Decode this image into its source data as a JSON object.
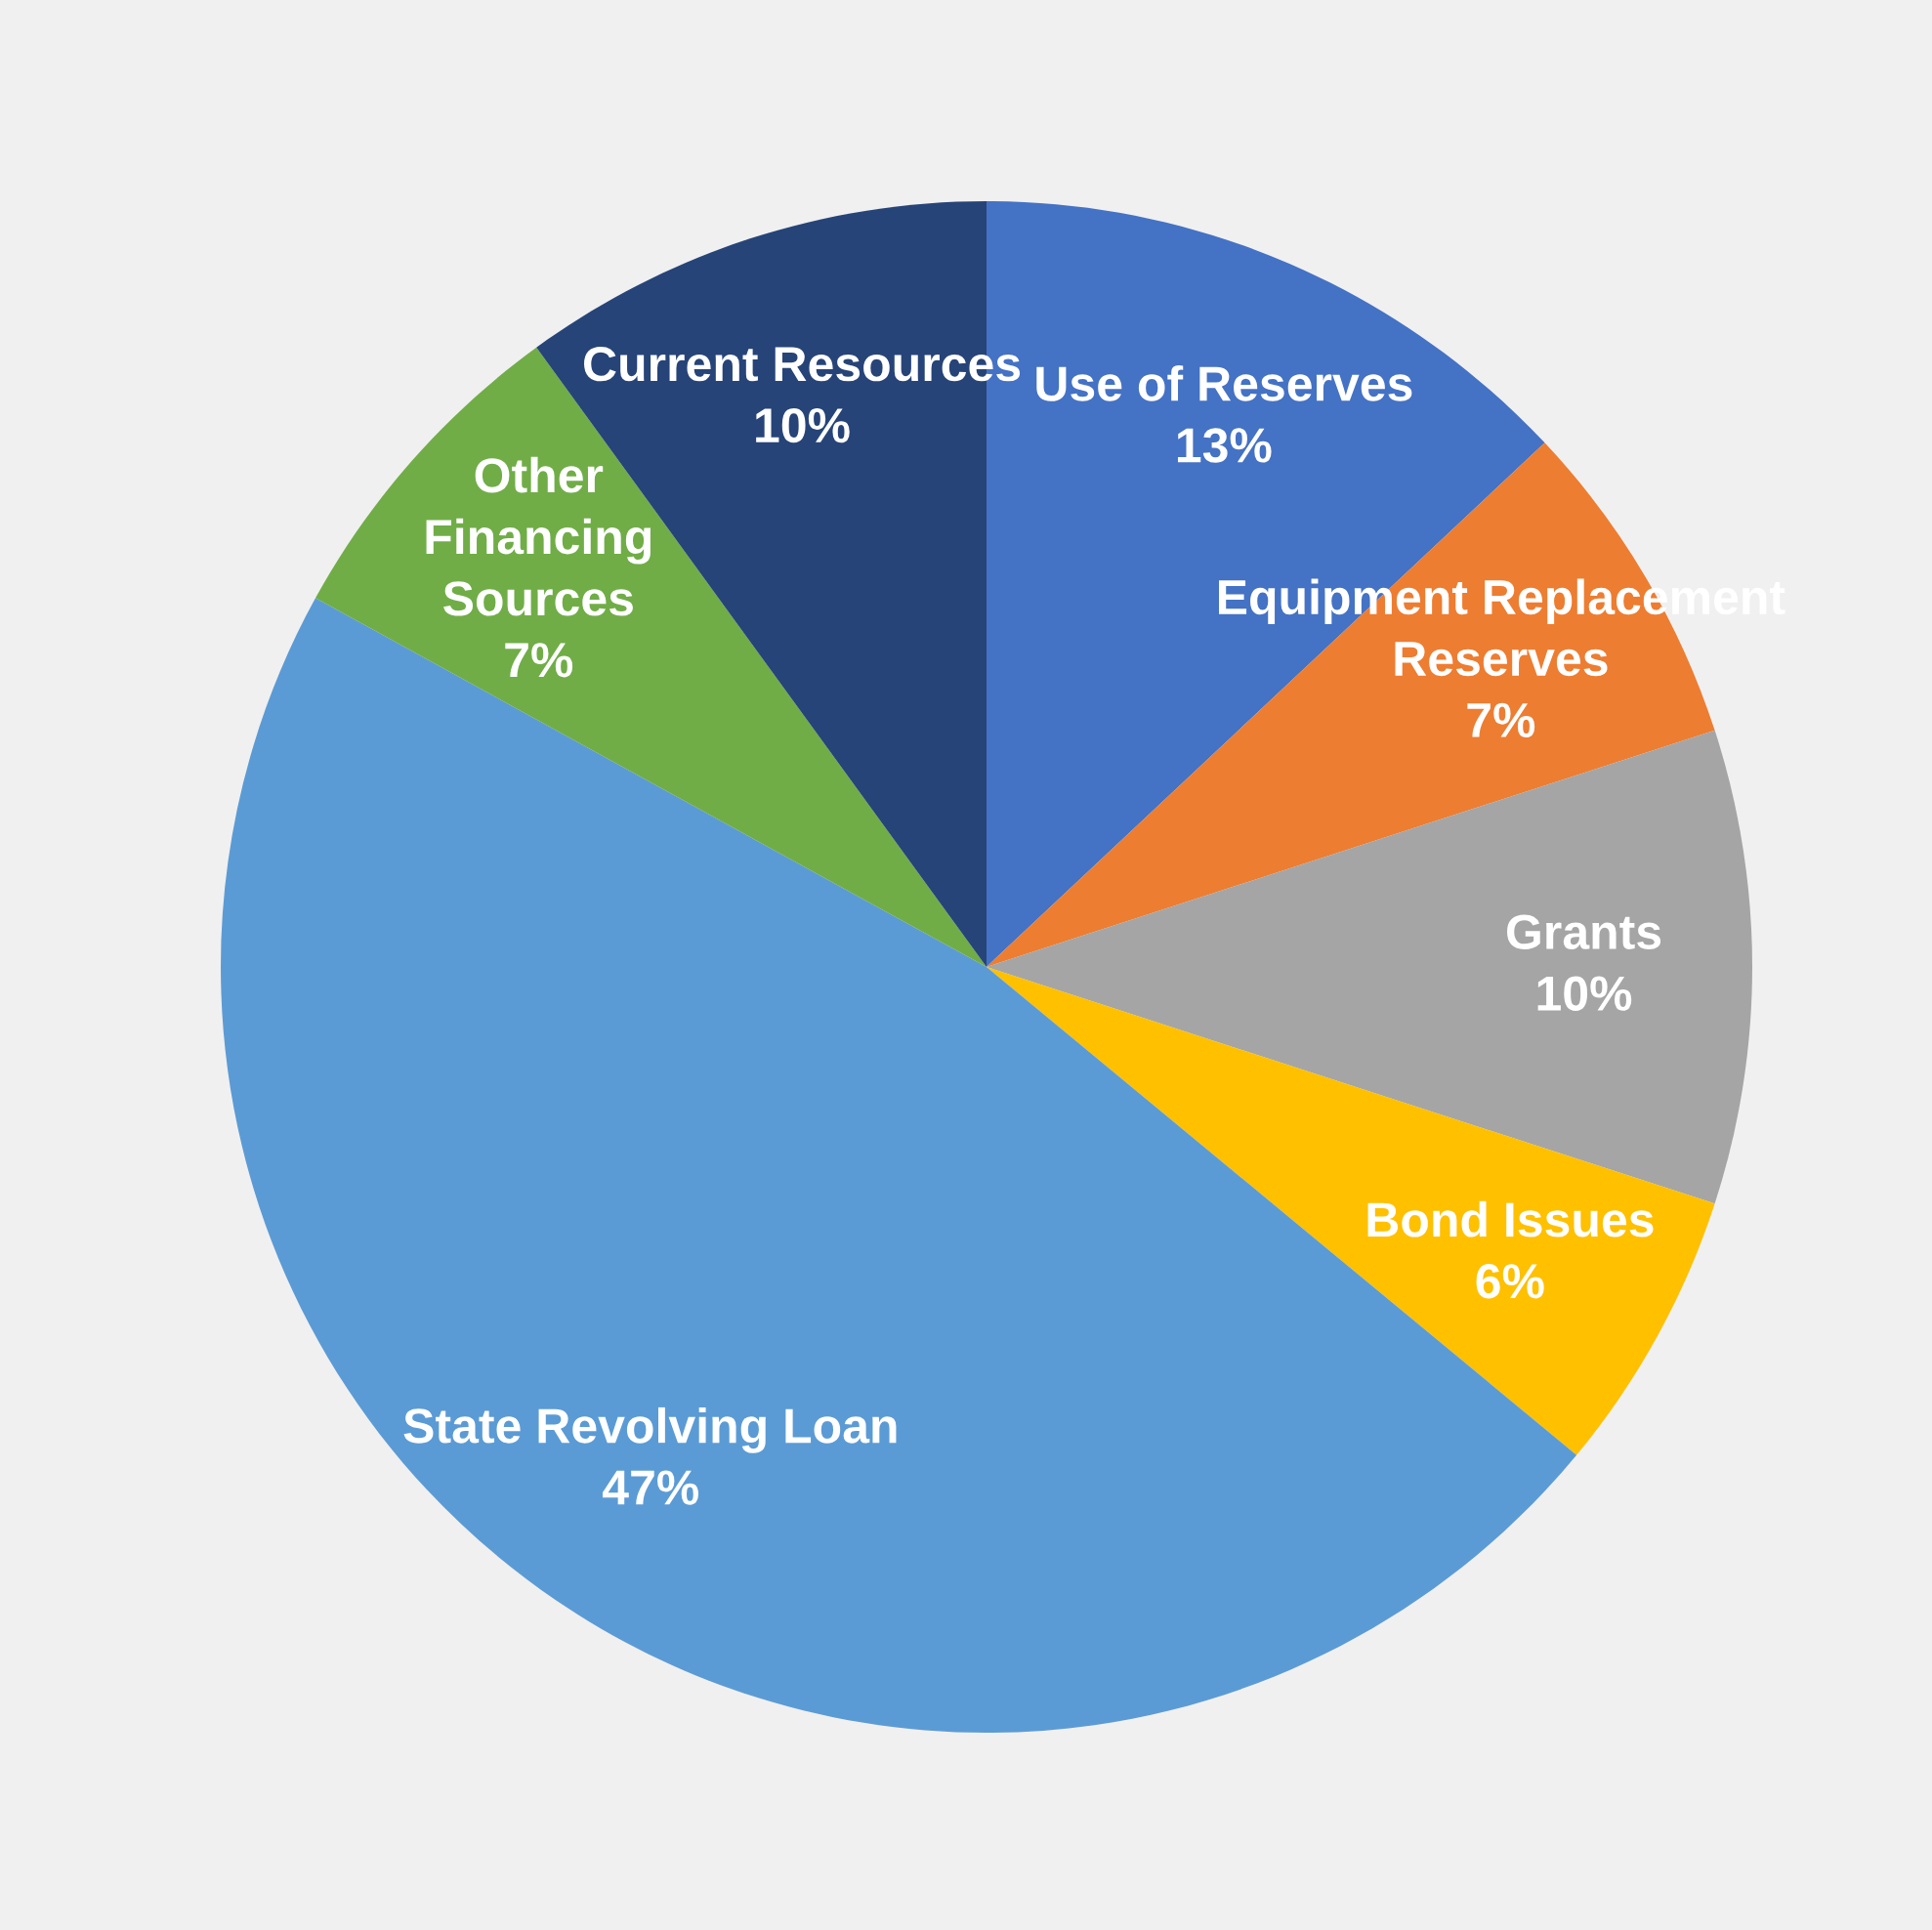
{
  "chart_data": {
    "type": "pie",
    "categories": [
      "Use of Reserves",
      "Equipment Replacement\nReserves",
      "Grants",
      "Bond Issues",
      "State Revolving Loan",
      "Other\nFinancing\nSources",
      "Current Resources"
    ],
    "values": [
      13,
      7,
      10,
      6,
      47,
      7,
      10
    ],
    "colors": [
      "#4472c4",
      "#ed7d31",
      "#a5a5a5",
      "#ffc000",
      "#5b9bd5",
      "#70ad47",
      "#264478"
    ],
    "value_labels": [
      "13%",
      "7%",
      "10%",
      "6%",
      "47%",
      "7%",
      "10%"
    ],
    "legend": false
  }
}
